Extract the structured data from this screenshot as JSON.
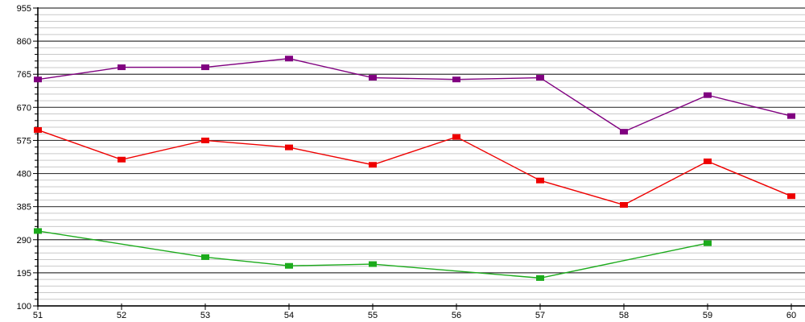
{
  "chart_data": {
    "type": "line",
    "title": "",
    "xlabel": "",
    "ylabel": "",
    "legend": "none",
    "grid": {
      "horizontal_only": true,
      "major_color": "#3a3a3a",
      "minor_color": "#c9c9c9",
      "axis_color": "#000000"
    },
    "x_axis": {
      "min": 51,
      "max": 60,
      "tick_labels": [
        "51",
        "52",
        "53",
        "54",
        "55",
        "56",
        "57",
        "58",
        "59",
        "60"
      ]
    },
    "y_axis": {
      "min": 100,
      "max": 955,
      "major_step": 95,
      "minor_step": 19,
      "tick_labels": [
        "100",
        "195",
        "290",
        "385",
        "480",
        "575",
        "670",
        "765",
        "860",
        "955"
      ]
    },
    "series": [
      {
        "name": "purple-series",
        "color": "#800080",
        "marker": "square",
        "points": [
          [
            51,
            750
          ],
          [
            52,
            785
          ],
          [
            53,
            785
          ],
          [
            54,
            810
          ],
          [
            55,
            755
          ],
          [
            56,
            750
          ],
          [
            57,
            755
          ],
          [
            58,
            600
          ],
          [
            59,
            705
          ],
          [
            60,
            645
          ]
        ]
      },
      {
        "name": "red-series",
        "color": "#ee0000",
        "marker": "square",
        "points": [
          [
            51,
            605
          ],
          [
            52,
            520
          ],
          [
            53,
            575
          ],
          [
            54,
            555
          ],
          [
            55,
            505
          ],
          [
            56,
            585
          ],
          [
            57,
            460
          ],
          [
            58,
            390
          ],
          [
            59,
            515
          ],
          [
            60,
            415
          ]
        ]
      },
      {
        "name": "green-series",
        "color": "#1cab1c",
        "marker": "square",
        "points": [
          [
            51,
            315
          ],
          [
            53,
            240
          ],
          [
            54,
            215
          ],
          [
            55,
            220
          ],
          [
            57,
            180
          ],
          [
            59,
            280
          ]
        ]
      }
    ]
  }
}
